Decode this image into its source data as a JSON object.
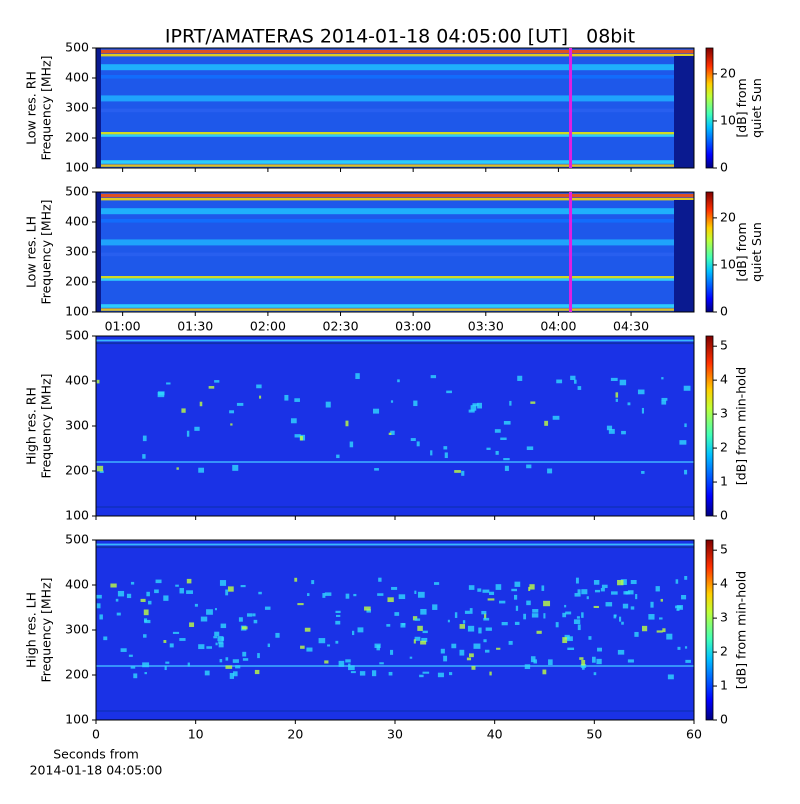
{
  "chart_data": [
    {
      "type": "heatmap",
      "title": "IPRT/AMATERAS 2014-01-18 04:05:00 [UT]   08bit",
      "ylabel": [
        "Low res. RH",
        "Frequency [MHz]"
      ],
      "ylim": [
        100,
        500
      ],
      "yticks": [
        100,
        200,
        300,
        400,
        500
      ],
      "xlim": [
        49,
        296
      ],
      "cursor": 245,
      "cursor_color": "#e020e0",
      "colorbar_label": [
        "[dB] from",
        "quiet Sun"
      ],
      "clim": [
        0,
        25.5
      ],
      "cticks": [
        0,
        10,
        20
      ]
    },
    {
      "type": "heatmap",
      "ylabel": [
        "Low res. LH",
        "Frequency [MHz]"
      ],
      "ylim": [
        100,
        500
      ],
      "yticks": [
        100,
        200,
        300,
        400,
        500
      ],
      "xlim": [
        49,
        296
      ],
      "cursor": 245,
      "cursor_color": "#e020e0",
      "xticks": [
        {
          "value": 60,
          "label": "01:00"
        },
        {
          "value": 90,
          "label": "01:30"
        },
        {
          "value": 120,
          "label": "02:00"
        },
        {
          "value": 150,
          "label": "02:30"
        },
        {
          "value": 180,
          "label": "03:00"
        },
        {
          "value": 210,
          "label": "03:30"
        },
        {
          "value": 240,
          "label": "04:00"
        },
        {
          "value": 270,
          "label": "04:30"
        }
      ],
      "colorbar_label": [
        "[dB] from",
        "quiet Sun"
      ],
      "clim": [
        0,
        25.5
      ],
      "cticks": [
        0,
        10,
        20
      ]
    },
    {
      "type": "heatmap",
      "ylabel": [
        "High res. RH",
        "Frequency [MHz]"
      ],
      "ylim": [
        100,
        500
      ],
      "yticks": [
        100,
        200,
        300,
        400,
        500
      ],
      "xlim": [
        0,
        60
      ],
      "colorbar_label": [
        "[dB] from min-hold"
      ],
      "clim": [
        0,
        5.3
      ],
      "cticks": [
        0,
        1,
        2,
        3,
        4,
        5
      ]
    },
    {
      "type": "heatmap",
      "ylabel": [
        "High res. LH",
        "Frequency [MHz]"
      ],
      "ylim": [
        100,
        500
      ],
      "yticks": [
        100,
        200,
        300,
        400,
        500
      ],
      "xlim": [
        0,
        60
      ],
      "xticks": [
        0,
        10,
        20,
        30,
        40,
        50,
        60
      ],
      "xlabel": [
        "Seconds from",
        "2014-01-18 04:05:00"
      ],
      "colorbar_label": [
        "[dB] from min-hold"
      ],
      "clim": [
        0,
        5.3
      ],
      "cticks": [
        0,
        1,
        2,
        3,
        4,
        5
      ]
    }
  ]
}
